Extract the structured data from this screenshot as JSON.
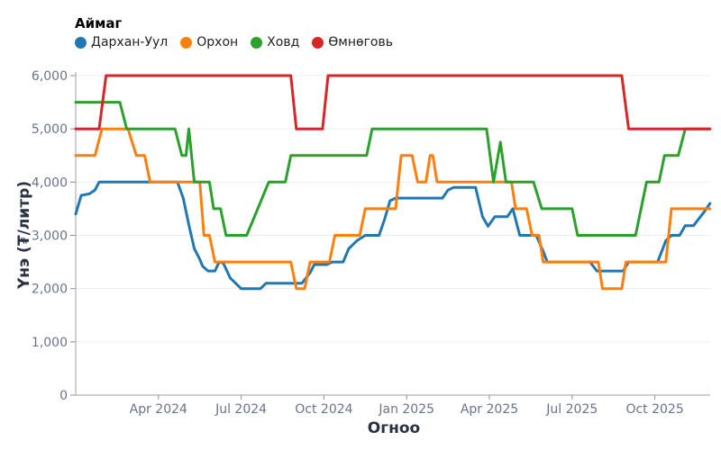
{
  "legend": {
    "title": "Аймаг",
    "items": [
      {
        "label": "Дархан-Уул",
        "color": "#1f77b4"
      },
      {
        "label": "Орхон",
        "color": "#ff7f0e"
      },
      {
        "label": "Ховд",
        "color": "#2ca02c"
      },
      {
        "label": "Өмнөговь",
        "color": "#d62728"
      }
    ]
  },
  "axes": {
    "x_title": "Огноо",
    "y_title": "Үнэ (₮/литр)"
  },
  "chart_data": {
    "type": "line",
    "title": "",
    "xlabel": "Огноо",
    "ylabel": "Үнэ (₮/литр)",
    "legend_title": "Аймаг",
    "legend_position": "top-left",
    "grid": true,
    "ylim": [
      0,
      6000
    ],
    "y_ticks": [
      0,
      1000,
      2000,
      3000,
      4000,
      5000,
      6000
    ],
    "y_tick_labels": [
      "0",
      "1,000",
      "2,000",
      "3,000",
      "4,000",
      "5,000",
      "6,000"
    ],
    "x_range_months_from_2024_01": [
      0,
      23.0
    ],
    "x_ticks": [
      {
        "label": "Apr 2024",
        "month": 3
      },
      {
        "label": "Jul 2024",
        "month": 6
      },
      {
        "label": "Oct 2024",
        "month": 9
      },
      {
        "label": "Jan 2025",
        "month": 12
      },
      {
        "label": "Apr 2025",
        "month": 15
      },
      {
        "label": "Jul 2025",
        "month": 18
      },
      {
        "label": "Oct 2025",
        "month": 21
      }
    ],
    "x_unit": "months since 2024-01-01",
    "series": [
      {
        "name": "Дархан-Уул",
        "color": "#1f77b4",
        "points": [
          [
            0,
            3400
          ],
          [
            0.2,
            3750
          ],
          [
            0.5,
            3780
          ],
          [
            0.7,
            3850
          ],
          [
            0.85,
            4000
          ],
          [
            3.69,
            4000
          ],
          [
            3.9,
            3700
          ],
          [
            4.1,
            3200
          ],
          [
            4.3,
            2750
          ],
          [
            4.5,
            2550
          ],
          [
            4.6,
            2420
          ],
          [
            4.8,
            2330
          ],
          [
            5.05,
            2330
          ],
          [
            5.2,
            2500
          ],
          [
            5.35,
            2480
          ],
          [
            5.6,
            2200
          ],
          [
            6.0,
            2000
          ],
          [
            6.7,
            2000
          ],
          [
            6.9,
            2100
          ],
          [
            8.2,
            2100
          ],
          [
            8.5,
            2300
          ],
          [
            8.65,
            2450
          ],
          [
            9.1,
            2450
          ],
          [
            9.3,
            2500
          ],
          [
            9.7,
            2500
          ],
          [
            9.9,
            2750
          ],
          [
            10.2,
            2900
          ],
          [
            10.5,
            3000
          ],
          [
            11.0,
            3000
          ],
          [
            11.2,
            3300
          ],
          [
            11.4,
            3650
          ],
          [
            11.6,
            3700
          ],
          [
            13.3,
            3700
          ],
          [
            13.5,
            3850
          ],
          [
            13.7,
            3900
          ],
          [
            14.5,
            3900
          ],
          [
            14.75,
            3350
          ],
          [
            14.95,
            3170
          ],
          [
            15.2,
            3350
          ],
          [
            15.65,
            3350
          ],
          [
            15.85,
            3500
          ],
          [
            16.1,
            3000
          ],
          [
            16.7,
            3000
          ],
          [
            16.95,
            2700
          ],
          [
            17.1,
            2500
          ],
          [
            18.65,
            2500
          ],
          [
            18.9,
            2330
          ],
          [
            19.85,
            2330
          ],
          [
            20.05,
            2500
          ],
          [
            21.1,
            2500
          ],
          [
            21.4,
            2900
          ],
          [
            21.6,
            3000
          ],
          [
            21.9,
            3000
          ],
          [
            22.1,
            3180
          ],
          [
            22.4,
            3180
          ],
          [
            22.8,
            3450
          ],
          [
            23.0,
            3600
          ]
        ]
      },
      {
        "name": "Орхон",
        "color": "#ff7f0e",
        "points": [
          [
            0,
            4500
          ],
          [
            0.7,
            4500
          ],
          [
            0.95,
            5000
          ],
          [
            1.9,
            5000
          ],
          [
            2.2,
            4500
          ],
          [
            2.5,
            4500
          ],
          [
            2.7,
            4000
          ],
          [
            4.5,
            4000
          ],
          [
            4.65,
            3000
          ],
          [
            4.85,
            3000
          ],
          [
            5.05,
            2500
          ],
          [
            7.8,
            2500
          ],
          [
            8.0,
            2000
          ],
          [
            8.3,
            2000
          ],
          [
            8.5,
            2500
          ],
          [
            9.2,
            2500
          ],
          [
            9.4,
            3000
          ],
          [
            10.3,
            3000
          ],
          [
            10.5,
            3500
          ],
          [
            11.6,
            3500
          ],
          [
            11.8,
            4500
          ],
          [
            12.2,
            4500
          ],
          [
            12.4,
            4000
          ],
          [
            12.7,
            4000
          ],
          [
            12.85,
            4500
          ],
          [
            12.95,
            4500
          ],
          [
            13.1,
            4000
          ],
          [
            15.8,
            4000
          ],
          [
            15.95,
            3500
          ],
          [
            16.35,
            3500
          ],
          [
            16.55,
            3000
          ],
          [
            16.8,
            3000
          ],
          [
            16.95,
            2500
          ],
          [
            18.95,
            2500
          ],
          [
            19.1,
            2000
          ],
          [
            19.8,
            2000
          ],
          [
            19.95,
            2500
          ],
          [
            21.4,
            2500
          ],
          [
            21.6,
            3500
          ],
          [
            23.0,
            3500
          ]
        ]
      },
      {
        "name": "Ховд",
        "color": "#2ca02c",
        "points": [
          [
            0,
            5500
          ],
          [
            1.6,
            5500
          ],
          [
            1.85,
            5000
          ],
          [
            3.6,
            5000
          ],
          [
            3.85,
            4500
          ],
          [
            4.0,
            4500
          ],
          [
            4.1,
            5000
          ],
          [
            4.3,
            4000
          ],
          [
            4.85,
            4000
          ],
          [
            5.0,
            3500
          ],
          [
            5.25,
            3500
          ],
          [
            5.45,
            3000
          ],
          [
            6.2,
            3000
          ],
          [
            6.6,
            3500
          ],
          [
            7.0,
            4000
          ],
          [
            7.6,
            4000
          ],
          [
            7.8,
            4500
          ],
          [
            10.55,
            4500
          ],
          [
            10.75,
            5000
          ],
          [
            14.9,
            5000
          ],
          [
            15.15,
            4000
          ],
          [
            15.4,
            4750
          ],
          [
            15.6,
            4000
          ],
          [
            16.6,
            4000
          ],
          [
            16.9,
            3500
          ],
          [
            18.0,
            3500
          ],
          [
            18.2,
            3000
          ],
          [
            20.3,
            3000
          ],
          [
            20.7,
            4000
          ],
          [
            21.15,
            4000
          ],
          [
            21.35,
            4500
          ],
          [
            21.85,
            4500
          ],
          [
            22.1,
            5000
          ],
          [
            23.0,
            5000
          ]
        ]
      },
      {
        "name": "Өмнөговь",
        "color": "#d62728",
        "points": [
          [
            0,
            5000
          ],
          [
            0.85,
            5000
          ],
          [
            1.1,
            6000
          ],
          [
            7.8,
            6000
          ],
          [
            8.0,
            5000
          ],
          [
            8.95,
            5000
          ],
          [
            9.15,
            6000
          ],
          [
            19.8,
            6000
          ],
          [
            20.05,
            5000
          ],
          [
            23.0,
            5000
          ]
        ]
      }
    ]
  }
}
